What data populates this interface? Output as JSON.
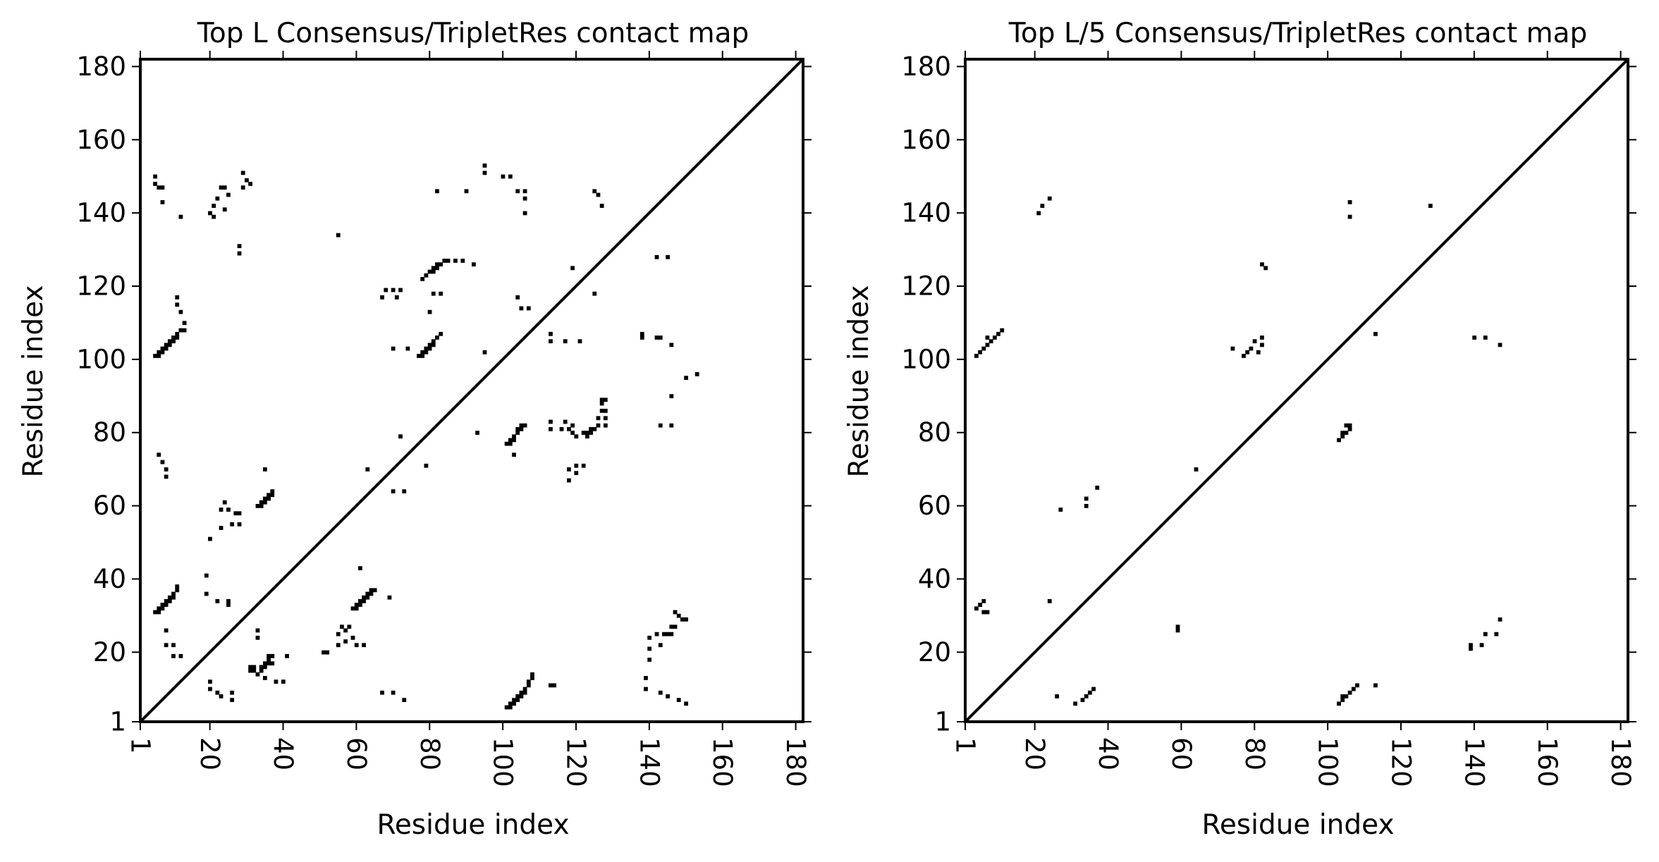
{
  "chart_data": [
    {
      "type": "heatmap",
      "title": "Top L Consensus/TripletRes contact map",
      "xlabel": "Residue index",
      "ylabel": "Residue index",
      "xlim": [
        1,
        182
      ],
      "ylim": [
        1,
        182
      ],
      "xticks": [
        "1",
        "20",
        "40",
        "60",
        "80",
        "100",
        "120",
        "140",
        "160",
        "180"
      ],
      "yticks": [
        "1",
        "20",
        "40",
        "60",
        "80",
        "100",
        "120",
        "140",
        "160",
        "180"
      ],
      "diagonal": true,
      "grid": false,
      "contacts": [
        [
          5,
          101
        ],
        [
          6,
          101
        ],
        [
          6,
          102
        ],
        [
          7,
          102
        ],
        [
          7,
          103
        ],
        [
          8,
          103
        ],
        [
          8,
          104
        ],
        [
          9,
          104
        ],
        [
          9,
          105
        ],
        [
          10,
          105
        ],
        [
          10,
          106
        ],
        [
          11,
          106
        ],
        [
          11,
          107
        ],
        [
          12,
          108
        ],
        [
          13,
          108
        ],
        [
          12,
          113
        ],
        [
          11,
          115
        ],
        [
          11,
          117
        ],
        [
          13,
          110
        ],
        [
          5,
          150
        ],
        [
          5,
          148
        ],
        [
          6,
          147
        ],
        [
          7,
          147
        ],
        [
          7,
          143
        ],
        [
          12,
          139
        ],
        [
          20,
          140
        ],
        [
          21,
          139
        ],
        [
          21,
          142
        ],
        [
          22,
          144
        ],
        [
          23,
          147
        ],
        [
          24,
          147
        ],
        [
          25,
          145
        ],
        [
          24,
          141
        ],
        [
          28,
          131
        ],
        [
          28,
          129
        ],
        [
          29,
          147
        ],
        [
          29,
          151
        ],
        [
          31,
          148
        ],
        [
          30,
          149
        ],
        [
          55,
          134
        ],
        [
          77,
          101
        ],
        [
          78,
          101
        ],
        [
          78,
          102
        ],
        [
          79,
          102
        ],
        [
          79,
          103
        ],
        [
          80,
          103
        ],
        [
          80,
          104
        ],
        [
          81,
          104
        ],
        [
          81,
          105
        ],
        [
          82,
          106
        ],
        [
          83,
          107
        ],
        [
          70,
          103
        ],
        [
          74,
          103
        ],
        [
          80,
          113
        ],
        [
          81,
          118
        ],
        [
          83,
          118
        ],
        [
          67,
          117
        ],
        [
          68,
          119
        ],
        [
          70,
          119
        ],
        [
          72,
          119
        ],
        [
          71,
          117
        ],
        [
          78,
          122
        ],
        [
          79,
          123
        ],
        [
          80,
          124
        ],
        [
          81,
          124
        ],
        [
          81,
          125
        ],
        [
          82,
          125
        ],
        [
          82,
          126
        ],
        [
          83,
          126
        ],
        [
          84,
          127
        ],
        [
          85,
          127
        ],
        [
          87,
          127
        ],
        [
          89,
          127
        ],
        [
          92,
          126
        ],
        [
          82,
          146
        ],
        [
          90,
          146
        ],
        [
          95,
          153
        ],
        [
          95,
          151
        ],
        [
          100,
          150
        ],
        [
          102,
          150
        ],
        [
          104,
          146
        ],
        [
          106,
          146
        ],
        [
          106,
          144
        ],
        [
          106,
          140
        ],
        [
          95,
          102
        ],
        [
          104,
          117
        ],
        [
          105,
          114
        ],
        [
          107,
          114
        ],
        [
          119,
          125
        ],
        [
          125,
          146
        ],
        [
          126,
          145
        ],
        [
          127,
          142
        ],
        [
          125,
          118
        ],
        [
          113,
          107
        ],
        [
          113,
          105
        ],
        [
          117,
          105
        ],
        [
          121,
          105
        ],
        [
          5,
          31
        ],
        [
          6,
          31
        ],
        [
          6,
          32
        ],
        [
          7,
          32
        ],
        [
          7,
          33
        ],
        [
          8,
          33
        ],
        [
          8,
          34
        ],
        [
          9,
          34
        ],
        [
          9,
          35
        ],
        [
          10,
          35
        ],
        [
          10,
          36
        ],
        [
          11,
          37
        ],
        [
          11,
          38
        ],
        [
          8,
          26
        ],
        [
          8,
          22
        ],
        [
          10,
          22
        ],
        [
          10,
          19
        ],
        [
          12,
          19
        ],
        [
          6,
          74
        ],
        [
          7,
          72
        ],
        [
          8,
          70
        ],
        [
          8,
          68
        ],
        [
          20,
          51
        ],
        [
          23,
          54
        ],
        [
          23,
          59
        ],
        [
          24,
          61
        ],
        [
          25,
          59
        ],
        [
          26,
          55
        ],
        [
          27,
          58
        ],
        [
          28,
          58
        ],
        [
          28,
          55
        ],
        [
          33,
          60
        ],
        [
          34,
          60
        ],
        [
          34,
          61
        ],
        [
          35,
          61
        ],
        [
          35,
          62
        ],
        [
          36,
          62
        ],
        [
          36,
          63
        ],
        [
          37,
          63
        ],
        [
          37,
          64
        ],
        [
          35,
          70
        ],
        [
          19,
          36
        ],
        [
          19,
          41
        ],
        [
          22,
          34
        ],
        [
          25,
          34
        ],
        [
          25,
          33
        ],
        [
          63,
          70
        ],
        [
          70,
          64
        ],
        [
          72,
          79
        ],
        [
          73,
          64
        ],
        [
          79,
          71
        ],
        [
          93,
          80
        ],
        [
          101,
          77
        ],
        [
          102,
          77
        ],
        [
          102,
          78
        ],
        [
          103,
          78
        ],
        [
          103,
          79
        ],
        [
          104,
          80
        ],
        [
          104,
          81
        ],
        [
          105,
          81
        ],
        [
          105,
          82
        ],
        [
          106,
          82
        ],
        [
          103,
          74
        ],
        [
          113,
          81
        ],
        [
          113,
          83
        ],
        [
          116,
          81
        ],
        [
          117,
          83
        ],
        [
          118,
          81
        ],
        [
          119,
          80
        ],
        [
          119,
          82
        ],
        [
          120,
          79
        ],
        [
          122,
          80
        ],
        [
          123,
          79
        ],
        [
          123,
          80
        ],
        [
          124,
          80
        ],
        [
          124,
          81
        ],
        [
          125,
          81
        ],
        [
          126,
          82
        ],
        [
          126,
          84
        ],
        [
          127,
          86
        ],
        [
          127,
          88
        ],
        [
          127,
          89
        ],
        [
          128,
          82
        ],
        [
          128,
          84
        ],
        [
          128,
          86
        ],
        [
          128,
          89
        ],
        [
          118,
          67
        ],
        [
          118,
          70
        ],
        [
          120,
          71
        ],
        [
          120,
          69
        ],
        [
          122,
          71
        ],
        [
          138,
          107
        ],
        [
          138,
          106
        ],
        [
          142,
          106
        ],
        [
          143,
          106
        ],
        [
          146,
          104
        ],
        [
          143,
          82
        ],
        [
          146,
          82
        ],
        [
          146,
          90
        ],
        [
          150,
          95
        ],
        [
          153,
          96
        ],
        [
          142,
          128
        ],
        [
          145,
          128
        ],
        [
          33,
          14
        ],
        [
          34,
          15
        ],
        [
          34,
          16
        ],
        [
          35,
          16
        ],
        [
          35,
          17
        ],
        [
          36,
          17
        ],
        [
          36,
          18
        ],
        [
          37,
          17
        ],
        [
          37,
          19
        ],
        [
          32,
          16
        ],
        [
          32,
          15
        ],
        [
          31,
          15
        ],
        [
          31,
          16
        ],
        [
          38,
          12
        ],
        [
          40,
          12
        ],
        [
          35,
          13
        ],
        [
          33,
          24
        ],
        [
          33,
          26
        ],
        [
          36,
          19
        ],
        [
          41,
          19
        ],
        [
          20,
          12
        ],
        [
          20,
          10
        ],
        [
          22,
          9
        ],
        [
          23,
          8
        ],
        [
          26,
          9
        ],
        [
          26,
          7
        ],
        [
          51,
          20
        ],
        [
          52,
          20
        ],
        [
          55,
          22
        ],
        [
          55,
          25
        ],
        [
          56,
          27
        ],
        [
          57,
          26
        ],
        [
          57,
          23
        ],
        [
          58,
          27
        ],
        [
          59,
          24
        ],
        [
          60,
          22
        ],
        [
          62,
          22
        ],
        [
          59,
          32
        ],
        [
          60,
          32
        ],
        [
          60,
          33
        ],
        [
          61,
          33
        ],
        [
          61,
          34
        ],
        [
          62,
          34
        ],
        [
          62,
          35
        ],
        [
          63,
          35
        ],
        [
          63,
          36
        ],
        [
          64,
          36
        ],
        [
          64,
          37
        ],
        [
          65,
          37
        ],
        [
          61,
          43
        ],
        [
          69,
          35
        ],
        [
          67,
          9
        ],
        [
          70,
          9
        ],
        [
          73,
          7
        ],
        [
          101,
          5
        ],
        [
          102,
          5
        ],
        [
          102,
          6
        ],
        [
          103,
          6
        ],
        [
          103,
          7
        ],
        [
          104,
          7
        ],
        [
          104,
          8
        ],
        [
          105,
          8
        ],
        [
          105,
          9
        ],
        [
          106,
          9
        ],
        [
          106,
          10
        ],
        [
          107,
          11
        ],
        [
          107,
          12
        ],
        [
          108,
          13
        ],
        [
          108,
          14
        ],
        [
          113,
          11
        ],
        [
          114,
          11
        ],
        [
          139,
          13
        ],
        [
          139,
          10
        ],
        [
          140,
          18
        ],
        [
          140,
          21
        ],
        [
          140,
          24
        ],
        [
          142,
          25
        ],
        [
          143,
          22
        ],
        [
          144,
          25
        ],
        [
          145,
          25
        ],
        [
          143,
          9
        ],
        [
          145,
          8
        ],
        [
          146,
          25
        ],
        [
          146,
          27
        ],
        [
          147,
          27
        ],
        [
          147,
          31
        ],
        [
          148,
          30
        ],
        [
          149,
          29
        ],
        [
          150,
          29
        ],
        [
          148,
          7
        ],
        [
          150,
          6
        ]
      ]
    },
    {
      "type": "heatmap",
      "title": "Top L/5 Consensus/TripletRes contact map",
      "xlabel": "Residue index",
      "ylabel": "Residue index",
      "xlim": [
        1,
        182
      ],
      "ylim": [
        1,
        182
      ],
      "xticks": [
        "1",
        "20",
        "40",
        "60",
        "80",
        "100",
        "120",
        "140",
        "160",
        "180"
      ],
      "yticks": [
        "1",
        "20",
        "40",
        "60",
        "80",
        "100",
        "120",
        "140",
        "160",
        "180"
      ],
      "diagonal": true,
      "grid": false,
      "contacts": [
        [
          4,
          101
        ],
        [
          5,
          102
        ],
        [
          6,
          103
        ],
        [
          7,
          104
        ],
        [
          7,
          106
        ],
        [
          8,
          105
        ],
        [
          9,
          106
        ],
        [
          10,
          107
        ],
        [
          11,
          108
        ],
        [
          21,
          140
        ],
        [
          22,
          142
        ],
        [
          24,
          144
        ],
        [
          82,
          126
        ],
        [
          83,
          125
        ],
        [
          106,
          143
        ],
        [
          106,
          139
        ],
        [
          128,
          142
        ],
        [
          74,
          103
        ],
        [
          77,
          101
        ],
        [
          78,
          102
        ],
        [
          79,
          103
        ],
        [
          80,
          105
        ],
        [
          81,
          102
        ],
        [
          82,
          104
        ],
        [
          82,
          106
        ],
        [
          113,
          107
        ],
        [
          4,
          32
        ],
        [
          5,
          33
        ],
        [
          6,
          34
        ],
        [
          6,
          31
        ],
        [
          7,
          31
        ],
        [
          24,
          34
        ],
        [
          27,
          59
        ],
        [
          34,
          60
        ],
        [
          34,
          62
        ],
        [
          37,
          65
        ],
        [
          64,
          70
        ],
        [
          59,
          26
        ],
        [
          59,
          27
        ],
        [
          103,
          78
        ],
        [
          104,
          79
        ],
        [
          104,
          80
        ],
        [
          105,
          80
        ],
        [
          106,
          81
        ],
        [
          106,
          82
        ],
        [
          105,
          82
        ],
        [
          139,
          21
        ],
        [
          139,
          22
        ],
        [
          142,
          22
        ],
        [
          143,
          25
        ],
        [
          146,
          25
        ],
        [
          147,
          29
        ],
        [
          140,
          106
        ],
        [
          143,
          106
        ],
        [
          147,
          104
        ],
        [
          26,
          8
        ],
        [
          31,
          6
        ],
        [
          33,
          7
        ],
        [
          34,
          8
        ],
        [
          35,
          9
        ],
        [
          36,
          10
        ],
        [
          103,
          6
        ],
        [
          104,
          7
        ],
        [
          104,
          8
        ],
        [
          105,
          8
        ],
        [
          106,
          9
        ],
        [
          107,
          10
        ],
        [
          108,
          11
        ],
        [
          113,
          11
        ]
      ]
    }
  ]
}
